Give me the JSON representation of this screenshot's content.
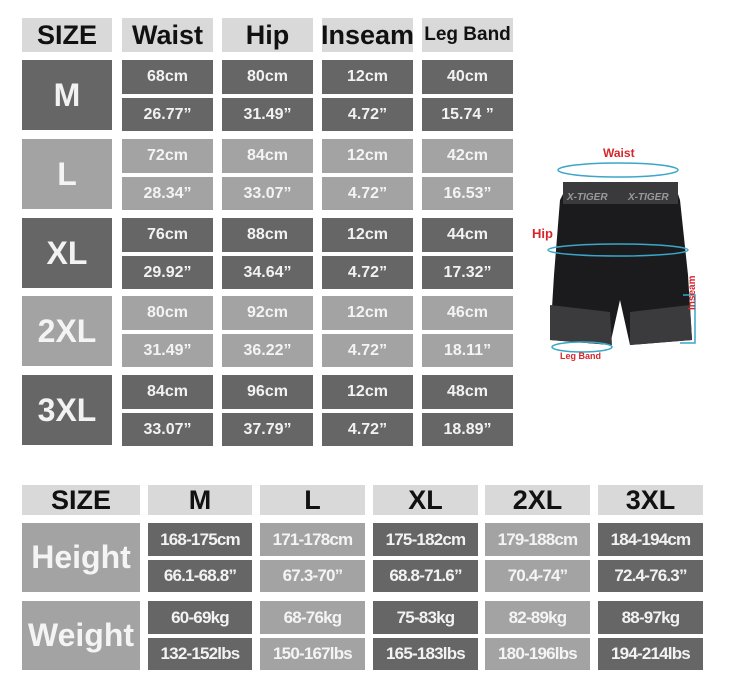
{
  "size_table": {
    "headers": [
      "SIZE",
      "Waist",
      "Hip",
      "Inseam",
      "Leg Band"
    ],
    "rows": [
      {
        "size": "M",
        "cm": [
          "68cm",
          "80cm",
          "12cm",
          "40cm"
        ],
        "in": [
          "26.77”",
          "31.49”",
          "4.72”",
          "15.74 ”"
        ]
      },
      {
        "size": "L",
        "cm": [
          "72cm",
          "84cm",
          "12cm",
          "42cm"
        ],
        "in": [
          "28.34”",
          "33.07”",
          "4.72”",
          "16.53”"
        ]
      },
      {
        "size": "XL",
        "cm": [
          "76cm",
          "88cm",
          "12cm",
          "44cm"
        ],
        "in": [
          "29.92”",
          "34.64”",
          "4.72”",
          "17.32”"
        ]
      },
      {
        "size": "2XL",
        "cm": [
          "80cm",
          "92cm",
          "12cm",
          "46cm"
        ],
        "in": [
          "31.49”",
          "36.22”",
          "4.72”",
          "18.11”"
        ]
      },
      {
        "size": "3XL",
        "cm": [
          "84cm",
          "96cm",
          "12cm",
          "48cm"
        ],
        "in": [
          "33.07”",
          "37.79”",
          "4.72”",
          "18.89”"
        ]
      }
    ]
  },
  "body_table": {
    "headers": [
      "SIZE",
      "M",
      "L",
      "XL",
      "2XL",
      "3XL"
    ],
    "rows": [
      {
        "label": "Height",
        "metric": [
          "168-175cm",
          "171-178cm",
          "175-182cm",
          "179-188cm",
          "184-194cm"
        ],
        "imperial": [
          "66.1-68.8”",
          "67.3-70”",
          "68.8-71.6”",
          "70.4-74”",
          "72.4-76.3”"
        ]
      },
      {
        "label": "Weight",
        "metric": [
          "60-69kg",
          "68-76kg",
          "75-83kg",
          "82-89kg",
          "88-97kg"
        ],
        "imperial": [
          "132-152lbs",
          "150-167lbs",
          "165-183lbs",
          "180-196lbs",
          "194-214lbs"
        ]
      }
    ]
  },
  "diagram": {
    "brand": "X-TIGER",
    "labels": {
      "waist": "Waist",
      "hip": "Hip",
      "inseam": "Inseam",
      "leg_band": "Leg Band"
    },
    "colors": {
      "label": "#d6262c",
      "measure_line": "#3aa6c8"
    }
  },
  "colors": {
    "header": "#d9d9d9",
    "dark": "#666666",
    "light": "#a3a3a3"
  }
}
